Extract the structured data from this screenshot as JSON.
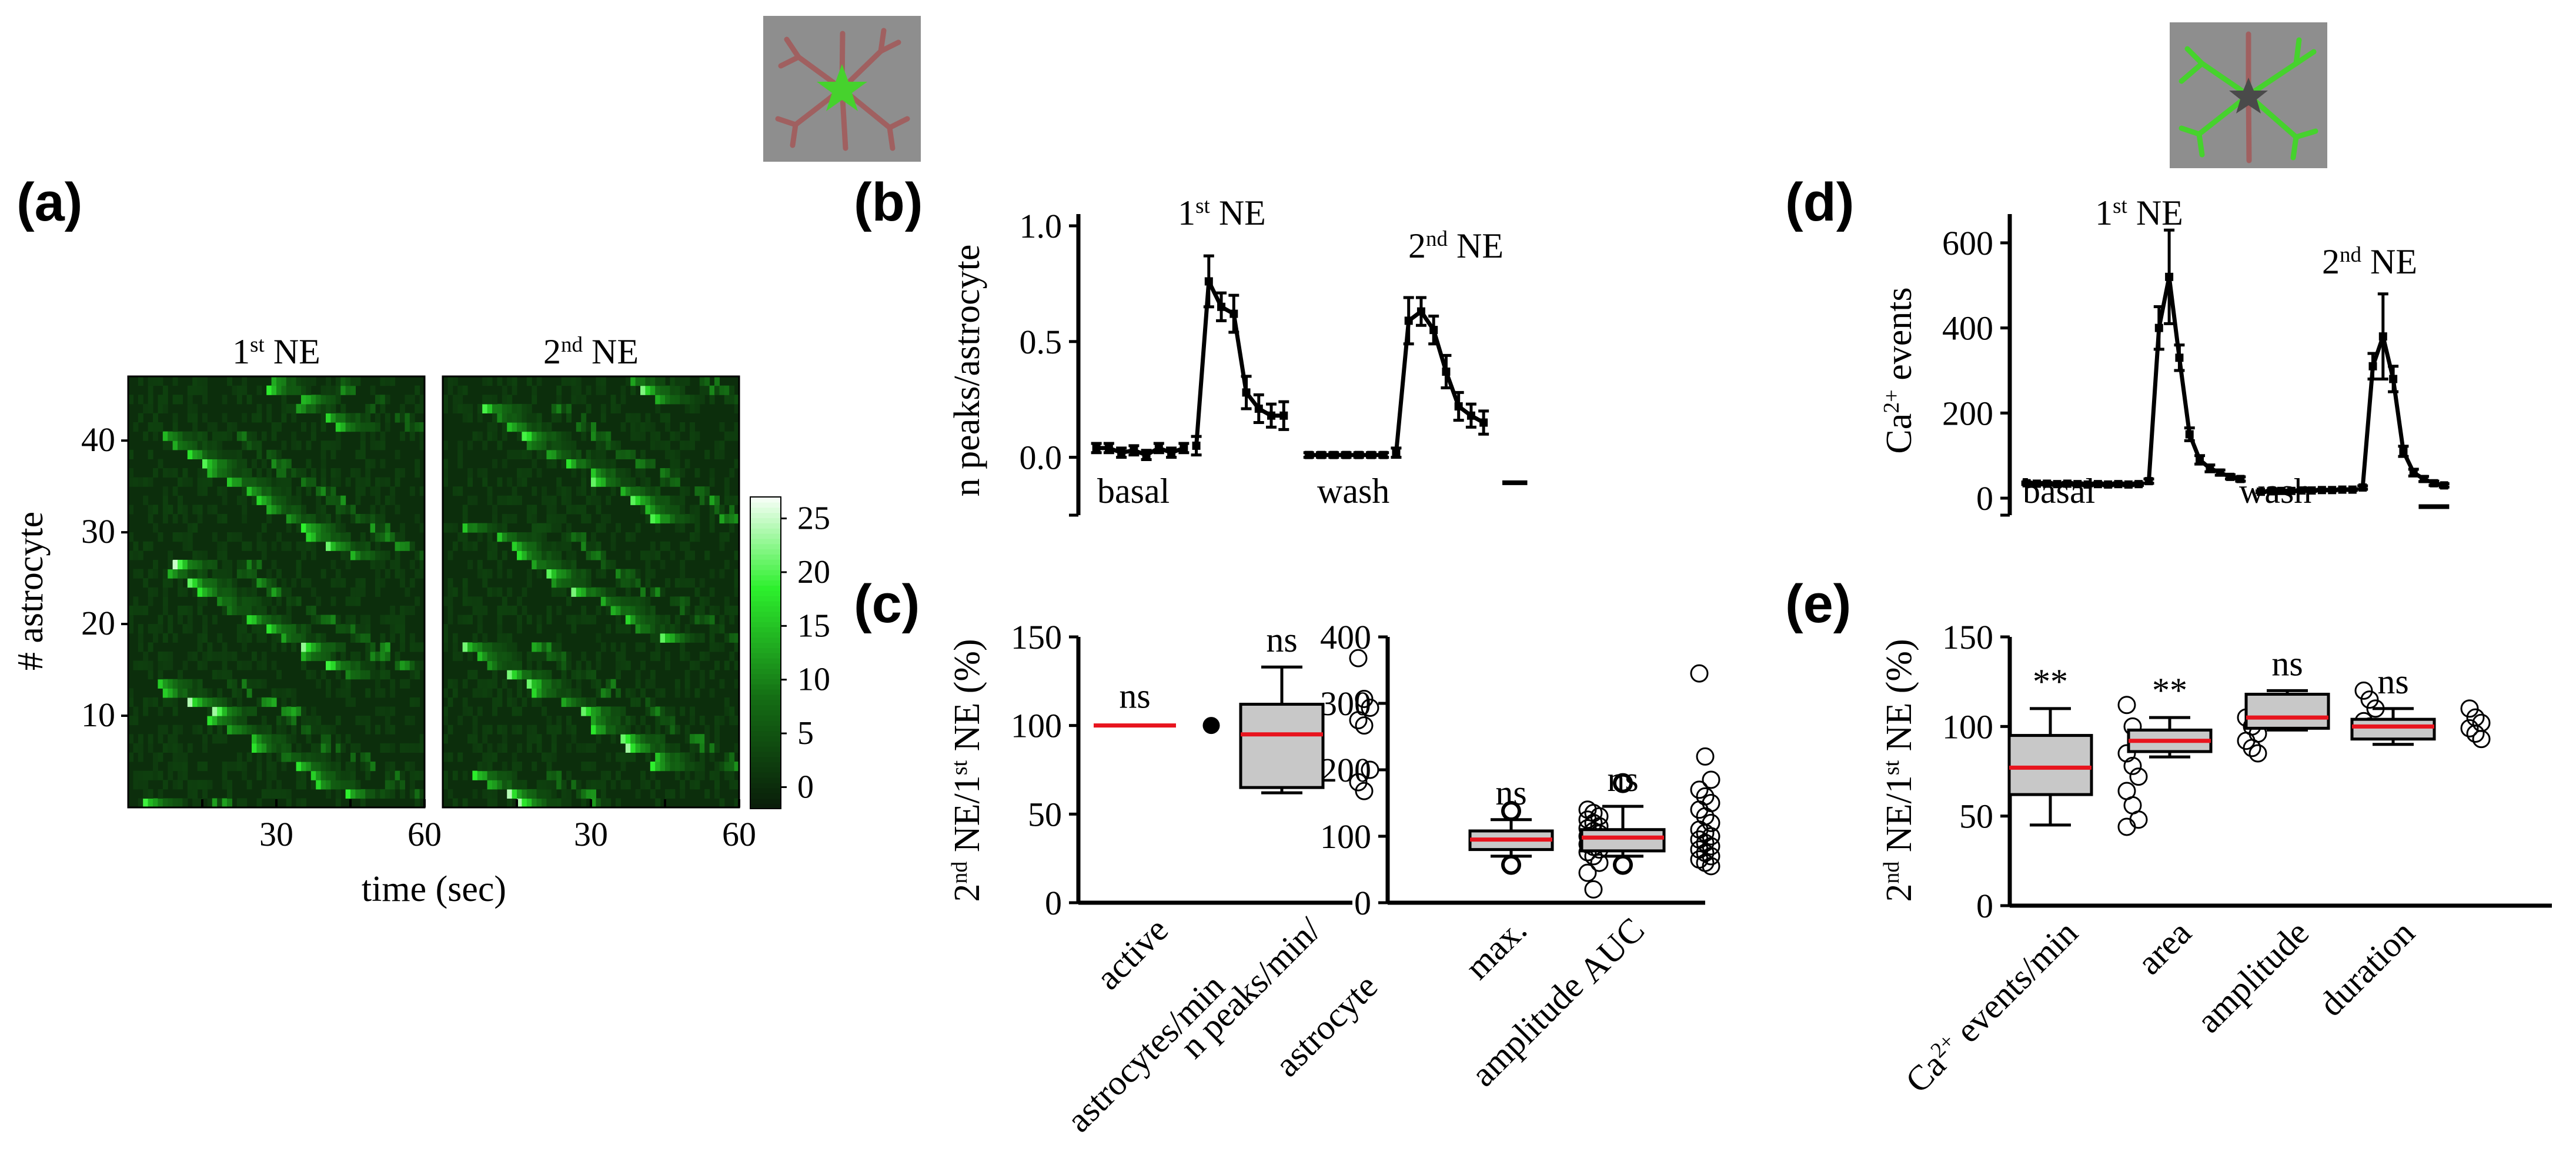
{
  "panel_labels": [
    "(a)",
    "(b)",
    "(c)",
    "(d)",
    "(e)"
  ],
  "colors": {
    "heat_low": "#0b1f0b",
    "heat_high": "#ffffff",
    "heat_mid": "#2cf32c",
    "median": "#e8141e",
    "box_fill": "#c8c8c8",
    "trace": "#000000",
    "icon_bg": "#8e8e8e",
    "icon_cell": "#a06060",
    "icon_green": "#46d22d"
  },
  "icons": [
    "astrocyte-soma-icon",
    "astrocyte-processes-icon"
  ],
  "chart_data": [
    {
      "panel": "a",
      "type": "heatmap",
      "titles": [
        "1st NE",
        "2nd NE"
      ],
      "title_parts": [
        [
          "1",
          "st",
          " NE"
        ],
        [
          "2",
          "nd",
          " NE"
        ]
      ],
      "xlabel": "time (sec)",
      "ylabel": "# astrocyte",
      "xlim": [
        0,
        60
      ],
      "ylim": [
        0,
        47
      ],
      "xticks": [
        30,
        60
      ],
      "yticks": [
        10,
        20,
        30,
        40
      ],
      "n_rows": 47,
      "colorbar": {
        "ticks": [
          25,
          20,
          15,
          10,
          5,
          0
        ],
        "range": [
          -2,
          27
        ]
      }
    },
    {
      "panel": "b",
      "type": "line",
      "ylabel": "n peaks/astrocyte",
      "yticks": [
        "1.0",
        "0.5",
        "0.0"
      ],
      "ylim": [
        -0.25,
        1.0
      ],
      "annotations": [
        [
          "1",
          "st",
          " NE"
        ],
        [
          "2",
          "nd",
          " NE"
        ]
      ],
      "phase_labels": [
        "basal",
        "wash"
      ],
      "series": [
        {
          "name": "basal",
          "x": [
            0,
            1,
            2,
            3,
            4,
            5,
            6,
            7
          ],
          "y": [
            0.04,
            0.04,
            0.02,
            0.03,
            0.01,
            0.04,
            0.02,
            0.04
          ],
          "err": [
            0.02,
            0.02,
            0.02,
            0.02,
            0.02,
            0.02,
            0.02,
            0.02
          ]
        },
        {
          "name": "1st NE",
          "x": [
            8,
            9,
            10,
            11,
            12,
            13,
            14,
            15
          ],
          "y": [
            0.05,
            0.76,
            0.65,
            0.62,
            0.28,
            0.21,
            0.18,
            0.18
          ],
          "err": [
            0.04,
            0.11,
            0.06,
            0.08,
            0.07,
            0.06,
            0.05,
            0.06
          ]
        },
        {
          "name": "wash",
          "x": [
            17,
            18,
            19,
            20,
            21,
            22,
            23
          ],
          "y": [
            0.01,
            0.01,
            0.01,
            0.01,
            0.01,
            0.01,
            0.01
          ],
          "err": [
            0.01,
            0.01,
            0.01,
            0.01,
            0.01,
            0.01,
            0.01
          ]
        },
        {
          "name": "2nd NE",
          "x": [
            24,
            25,
            26,
            27,
            28,
            29,
            30,
            31
          ],
          "y": [
            0.02,
            0.59,
            0.63,
            0.55,
            0.37,
            0.22,
            0.18,
            0.15
          ],
          "err": [
            0.02,
            0.1,
            0.06,
            0.06,
            0.07,
            0.06,
            0.05,
            0.05
          ]
        }
      ],
      "xlim": [
        -0.5,
        36.5
      ],
      "scale_bar": {
        "x": [
          32.5,
          34.5
        ],
        "y": -0.11
      }
    },
    {
      "panel": "c",
      "type": "box",
      "ylabel": "2nd NE/1st NE (%)",
      "ylabel_parts": [
        "2",
        "nd",
        " NE/1",
        "st",
        " NE (%)"
      ],
      "subplots": [
        {
          "ylim": [
            0,
            150
          ],
          "yticks": [
            0,
            50,
            100,
            150
          ],
          "categories": [
            "active astrocytes/min",
            "n peaks/min/ astrocyte"
          ],
          "category_lines": [
            [
              "active",
              "astrocytes/min"
            ],
            [
              "n peaks/min/",
              "astrocyte"
            ]
          ],
          "sig": [
            "ns",
            "ns"
          ],
          "boxes": [
            {
              "min": 100,
              "q1": 100,
              "median": 100,
              "q3": 100,
              "max": 100,
              "points": [
                100
              ]
            },
            {
              "min": 62,
              "q1": 65,
              "median": 95,
              "q3": 112,
              "max": 133,
              "points": [
                138,
                115,
                110,
                103,
                100,
                75,
                68,
                63
              ]
            }
          ]
        },
        {
          "ylim": [
            0,
            400
          ],
          "yticks": [
            0,
            100,
            200,
            300,
            400
          ],
          "categories": [
            "max. amplitude",
            "AUC"
          ],
          "category_lines": [
            [
              "max.",
              "amplitude"
            ],
            [
              "AUC"
            ]
          ],
          "sig": [
            "ns",
            "ns"
          ],
          "boxes": [
            {
              "min": 70,
              "q1": 80,
              "median": 95,
              "q3": 108,
              "max": 125,
              "points": [
                140,
                135,
                130,
                125,
                120,
                115,
                112,
                108,
                104,
                100,
                96,
                92,
                88,
                84,
                80,
                76,
                70,
                60,
                45,
                20
              ],
              "outliers": [
                57,
                138
              ]
            },
            {
              "min": 70,
              "q1": 78,
              "median": 98,
              "q3": 110,
              "max": 145,
              "points": [
                345,
                220,
                185,
                170,
                160,
                150,
                140,
                130,
                120,
                110,
                105,
                100,
                95,
                90,
                85,
                80,
                75,
                70,
                65,
                60,
                55
              ],
              "outliers": [
                57,
                180
              ]
            }
          ]
        }
      ]
    },
    {
      "panel": "d",
      "type": "line",
      "ylabel": "Ca2+ events",
      "ylabel_parts": [
        "Ca",
        "2+",
        " events"
      ],
      "yticks": [
        "600",
        "400",
        "200",
        "0"
      ],
      "ylim": [
        -40,
        640
      ],
      "annotations": [
        [
          "1",
          "st",
          " NE"
        ],
        [
          "2",
          "nd",
          " NE"
        ]
      ],
      "phase_labels": [
        "basal",
        "wash"
      ],
      "series": [
        {
          "name": "basal",
          "x": [
            0,
            1,
            2,
            3,
            4,
            5,
            6,
            7,
            8,
            9,
            10,
            11
          ],
          "y": [
            35,
            34,
            34,
            33,
            34,
            33,
            32,
            33,
            32,
            33,
            32,
            33
          ],
          "err": [
            3,
            3,
            3,
            3,
            3,
            3,
            3,
            3,
            3,
            3,
            3,
            3
          ]
        },
        {
          "name": "1st NE",
          "x": [
            12,
            13,
            14,
            15,
            16,
            17,
            18,
            19,
            20,
            21
          ],
          "y": [
            40,
            400,
            520,
            330,
            150,
            90,
            70,
            60,
            50,
            45
          ],
          "err": [
            5,
            50,
            110,
            30,
            15,
            10,
            8,
            6,
            5,
            5
          ]
        },
        {
          "name": "wash",
          "x": [
            23,
            24,
            25,
            26,
            27,
            28,
            29,
            30,
            31,
            32
          ],
          "y": [
            15,
            16,
            17,
            17,
            18,
            18,
            19,
            19,
            20,
            20
          ],
          "err": [
            2,
            2,
            2,
            2,
            2,
            2,
            2,
            2,
            2,
            2
          ]
        },
        {
          "name": "2nd NE",
          "x": [
            33,
            34,
            35,
            36,
            37,
            38,
            39,
            40,
            41
          ],
          "y": [
            25,
            310,
            380,
            280,
            110,
            60,
            45,
            35,
            30
          ],
          "err": [
            4,
            30,
            100,
            30,
            12,
            8,
            6,
            5,
            4
          ]
        }
      ],
      "xlim": [
        -0.5,
        43.5
      ],
      "scale_bar": {
        "x": [
          38.5,
          41.5
        ],
        "y": -20
      }
    },
    {
      "panel": "e",
      "type": "box",
      "ylabel": "2nd NE/1st NE (%)",
      "ylabel_parts": [
        "2",
        "nd",
        " NE/1",
        "st",
        " NE (%)"
      ],
      "ylim": [
        0,
        150
      ],
      "yticks": [
        0,
        50,
        100,
        150
      ],
      "categories": [
        "Ca2+ events/min",
        "area",
        "amplitude",
        "duration"
      ],
      "category_parts": [
        [
          "Ca",
          "2+",
          " events/min"
        ],
        [
          "area"
        ],
        [
          "amplitude"
        ],
        [
          "duration"
        ]
      ],
      "sig": [
        "**",
        "**",
        "ns",
        "ns"
      ],
      "boxes": [
        {
          "min": 45,
          "q1": 62,
          "median": 77,
          "q3": 95,
          "max": 110,
          "points": [
            112,
            100,
            92,
            85,
            78,
            72,
            64,
            56,
            48,
            44
          ]
        },
        {
          "min": 83,
          "q1": 86,
          "median": 92,
          "q3": 98,
          "max": 105,
          "points": [
            105,
            100,
            96,
            92,
            88,
            85
          ]
        },
        {
          "min": 98,
          "q1": 99,
          "median": 105,
          "q3": 118,
          "max": 120,
          "points": [
            120,
            115,
            110,
            103,
            100,
            98
          ]
        },
        {
          "min": 90,
          "q1": 93,
          "median": 100,
          "q3": 104,
          "max": 110,
          "points": [
            110,
            105,
            102,
            99,
            96,
            93
          ]
        }
      ]
    }
  ]
}
